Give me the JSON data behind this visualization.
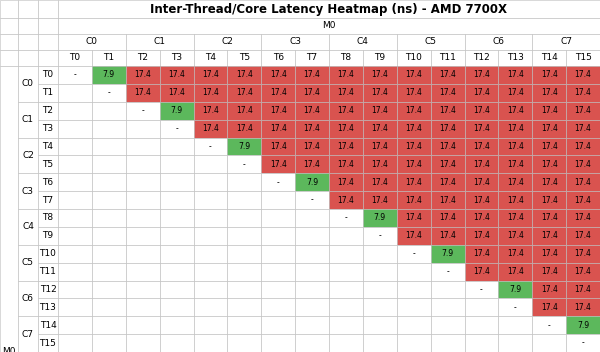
{
  "title": "Inter-Thread/Core Latency Heatmap (ns) - AMD 7700X",
  "threads": [
    "T0",
    "T1",
    "T2",
    "T3",
    "T4",
    "T5",
    "T6",
    "T7",
    "T8",
    "T9",
    "T10",
    "T11",
    "T12",
    "T13",
    "T14",
    "T15"
  ],
  "cores": [
    "C0",
    "C1",
    "C2",
    "C3",
    "C4",
    "C5",
    "C6",
    "C7"
  ],
  "val_same_core": "7.9",
  "val_diff_core": "17.4",
  "color_same_core": "#5cb85c",
  "color_diff_core": "#d9534f",
  "color_empty": "#ffffff",
  "color_diag": "#ffffff",
  "color_header": "#ffffff",
  "text_color": "#000000",
  "grid_color": "#bbbbbb",
  "font_size_cell": 5.5,
  "font_size_header": 6.5,
  "font_size_title": 8.5
}
